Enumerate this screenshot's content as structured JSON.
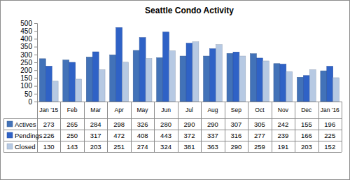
{
  "chart_data": {
    "type": "bar",
    "title": "Seattle Condo Activity",
    "categories": [
      "Jan '15",
      "Feb",
      "Mar",
      "Apr",
      "May",
      "Jun",
      "Jul",
      "Aug",
      "Sep",
      "Oct",
      "Nov",
      "Dec",
      "Jan '16"
    ],
    "series": [
      {
        "name": "Actives",
        "color": "#4272b8",
        "values": [
          273,
          265,
          284,
          298,
          326,
          280,
          290,
          290,
          307,
          305,
          242,
          155,
          196
        ]
      },
      {
        "name": "Pendings",
        "color": "#2f62c6",
        "values": [
          226,
          250,
          317,
          472,
          408,
          443,
          372,
          337,
          316,
          277,
          239,
          166,
          225
        ]
      },
      {
        "name": "Closed",
        "color": "#b6c9e3",
        "values": [
          130,
          143,
          203,
          251,
          274,
          324,
          381,
          363,
          290,
          259,
          191,
          203,
          152
        ]
      }
    ],
    "ylim": [
      0,
      500
    ],
    "yticks": [
      0,
      50,
      100,
      150,
      200,
      250,
      300,
      350,
      400,
      450,
      500
    ],
    "grid": false,
    "legend": "bottom"
  }
}
